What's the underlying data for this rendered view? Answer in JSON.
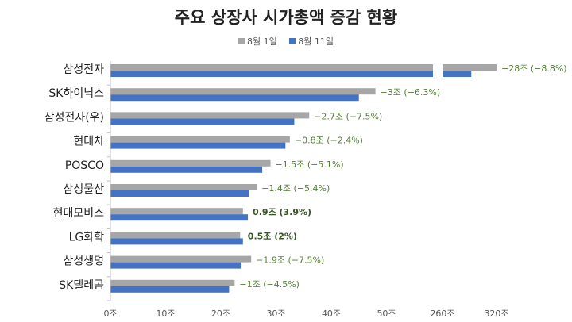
{
  "chart_data": {
    "type": "bar",
    "orientation": "horizontal",
    "title": "주요 상장사 시가총액 증감 현황",
    "categories": [
      "삼성전자",
      "SK하이닉스",
      "삼성전자(우)",
      "현대차",
      "POSCO",
      "삼성물산",
      "현대모비스",
      "LG화학",
      "삼성생명",
      "SK텔레콤"
    ],
    "series": [
      {
        "name": "8월 1일",
        "color": "#a6a6a6",
        "values": [
          320,
          48,
          36,
          32.5,
          29,
          26.5,
          24,
          23.5,
          25.5,
          22.5
        ]
      },
      {
        "name": "8월 11일",
        "color": "#4472c4",
        "values": [
          292,
          45,
          33.3,
          31.7,
          27.5,
          25.1,
          24.9,
          24,
          23.6,
          21.5
        ]
      }
    ],
    "data_labels": [
      "−28조 (−8.8%)",
      "−3조 (−6.3%)",
      "−2.7조 (−7.5%)",
      "−0.8조 (−2.4%)",
      "−1.5조 (−5.1%)",
      "−1.4조 (−5.4%)",
      "0.9조 (3.9%)",
      "0.5조 (2%)",
      "−1.9조 (−7.5%)",
      "−1조 (−4.5%)"
    ],
    "label_colors": {
      "negative": "#548235",
      "positive": "#375623"
    },
    "xaxis": {
      "break": true,
      "lower_range": [
        0,
        58
      ],
      "upper_range": [
        260,
        320
      ],
      "ticks": [
        {
          "value": 0,
          "label": "0조"
        },
        {
          "value": 10,
          "label": "10조"
        },
        {
          "value": 20,
          "label": "20조"
        },
        {
          "value": 30,
          "label": "30조"
        },
        {
          "value": 40,
          "label": "40조"
        },
        {
          "value": 50,
          "label": "50조"
        },
        {
          "value": 260,
          "label": "260조"
        },
        {
          "value": 320,
          "label": "320조"
        }
      ]
    },
    "legend_position": "top",
    "grid": false
  }
}
